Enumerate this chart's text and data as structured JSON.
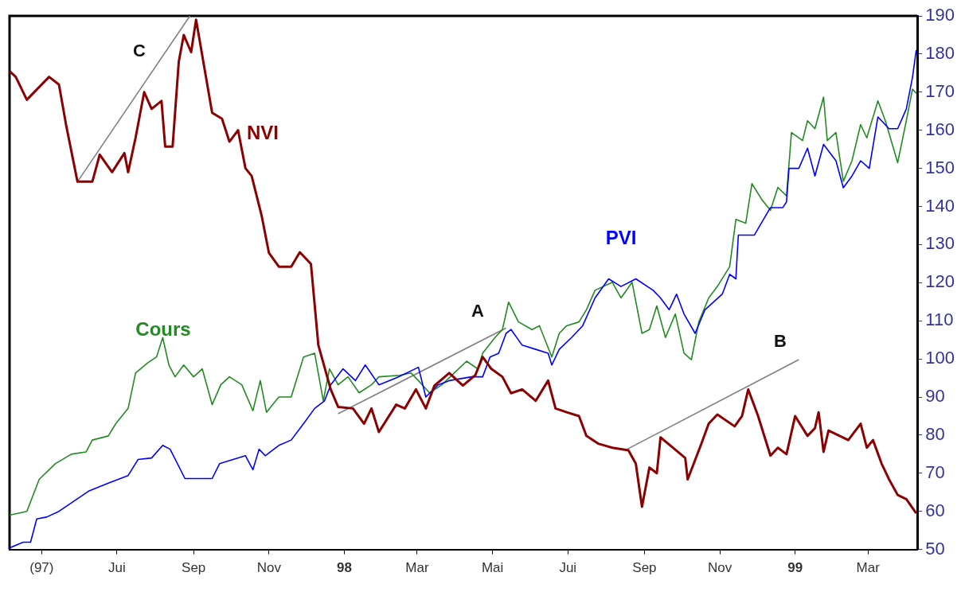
{
  "chart_data": {
    "type": "line",
    "xlim": [
      "1997-04-05",
      "1999-04-10"
    ],
    "xticks": [
      {
        "value": "1997-05-01",
        "label": "(97)"
      },
      {
        "value": "1997-07-01",
        "label": "Jui"
      },
      {
        "value": "1997-09-01",
        "label": "Sep"
      },
      {
        "value": "1997-11-01",
        "label": "Nov"
      },
      {
        "value": "1998-01-01",
        "label": "98"
      },
      {
        "value": "1998-03-01",
        "label": "Mar"
      },
      {
        "value": "1998-05-01",
        "label": "Mai"
      },
      {
        "value": "1998-07-01",
        "label": "Jui"
      },
      {
        "value": "1998-09-01",
        "label": "Sep"
      },
      {
        "value": "1998-11-01",
        "label": "Nov"
      },
      {
        "value": "1999-01-01",
        "label": "99"
      },
      {
        "value": "1999-03-01",
        "label": "Mar"
      }
    ],
    "ylim": [
      50,
      190
    ],
    "yticks": [
      50,
      60,
      70,
      80,
      90,
      100,
      110,
      120,
      130,
      140,
      150,
      160,
      170,
      180,
      190
    ],
    "grid": false,
    "legend": false,
    "marker": "none",
    "line_style": "solid",
    "annotations": [
      "A",
      "B",
      "C"
    ],
    "series": [
      {
        "name": "NVI",
        "color": "#8b0000",
        "x": [
          "1997-04-05",
          "1997-04-10",
          "1997-04-19",
          "1997-05-07",
          "1997-05-15",
          "1997-05-21",
          "1997-05-30",
          "1997-06-11",
          "1997-06-17",
          "1997-06-27",
          "1997-07-07",
          "1997-07-10",
          "1997-07-16",
          "1997-07-23",
          "1997-07-29",
          "1997-08-06",
          "1997-08-09",
          "1997-08-15",
          "1997-08-20",
          "1997-08-24",
          "1997-08-30",
          "1997-09-03",
          "1997-09-11",
          "1997-09-16",
          "1997-09-24",
          "1997-09-30",
          "1997-10-07",
          "1997-10-13",
          "1997-10-18",
          "1997-10-26",
          "1997-11-01",
          "1997-11-09",
          "1997-11-19",
          "1997-11-26",
          "1997-12-05",
          "1997-12-11",
          "1997-12-21",
          "1997-12-27",
          "1998-01-08",
          "1998-01-17",
          "1998-01-23",
          "1998-01-29",
          "1998-02-12",
          "1998-02-19",
          "1998-02-28",
          "1998-03-08",
          "1998-03-15",
          "1998-03-27",
          "1998-04-07",
          "1998-04-17",
          "1998-04-23",
          "1998-04-30",
          "1998-05-09",
          "1998-05-16",
          "1998-05-25",
          "1998-06-05",
          "1998-06-15",
          "1998-06-21",
          "1998-06-30",
          "1998-07-10",
          "1998-07-16",
          "1998-07-26",
          "1998-08-06",
          "1998-08-19",
          "1998-08-25",
          "1998-08-30",
          "1998-09-05",
          "1998-09-11",
          "1998-09-14",
          "1998-09-24",
          "1998-10-04",
          "1998-10-06",
          "1998-10-17",
          "1998-10-23",
          "1998-10-30",
          "1998-11-13",
          "1998-11-19",
          "1998-11-24",
          "1998-12-02",
          "1998-12-12",
          "1998-12-18",
          "1998-12-25",
          "1999-01-01",
          "1999-01-11",
          "1999-01-17",
          "1999-01-20",
          "1999-01-24",
          "1999-01-28",
          "1999-02-13",
          "1999-02-23",
          "1999-02-28",
          "1999-03-05",
          "1999-03-12",
          "1999-03-18",
          "1999-03-25",
          "1999-04-01",
          "1999-04-09"
        ],
        "values": [
          175.5,
          174,
          168,
          174,
          172,
          161,
          146.5,
          146.5,
          153.6,
          149,
          154,
          149,
          158,
          170,
          165.6,
          167.7,
          155.7,
          155.7,
          178,
          185,
          180.5,
          189,
          174,
          164.6,
          163,
          157,
          160,
          150,
          148,
          137.7,
          127.8,
          124.2,
          124.2,
          128,
          124.9,
          103.6,
          92,
          87.4,
          87,
          83,
          87,
          80.8,
          88,
          87,
          92,
          87,
          93,
          96.3,
          93,
          95.7,
          100.5,
          97.4,
          95.3,
          91,
          92,
          89,
          94.3,
          87,
          86,
          85,
          79.8,
          77.7,
          76.7,
          76,
          72.5,
          61.2,
          71.5,
          70,
          79.4,
          76.7,
          74,
          68.4,
          77.7,
          83,
          85.4,
          82.3,
          85,
          92,
          85,
          74.6,
          76.7,
          75,
          85,
          79.8,
          81.8,
          86,
          75.6,
          81.2,
          78.7,
          83,
          76.7,
          78.7,
          72.5,
          68.4,
          64.3,
          63.2,
          59.5
        ]
      },
      {
        "name": "PVI",
        "color": "#0000ff",
        "x": [
          "1997-04-05",
          "1997-04-16",
          "1997-04-22",
          "1997-04-27",
          "1997-05-05",
          "1997-05-15",
          "1997-05-25",
          "1997-06-08",
          "1997-06-24",
          "1997-07-10",
          "1997-07-18",
          "1997-07-29",
          "1997-08-07",
          "1997-08-13",
          "1997-08-25",
          "1997-09-16",
          "1997-09-22",
          "1997-10-03",
          "1997-10-13",
          "1997-10-19",
          "1997-10-24",
          "1997-10-29",
          "1997-11-09",
          "1997-11-19",
          "1997-11-29",
          "1997-12-08",
          "1997-12-16",
          "1997-12-21",
          "1997-12-31",
          "1998-01-10",
          "1998-01-18",
          "1998-01-29",
          "1998-02-12",
          "1998-03-02",
          "1998-03-08",
          "1998-03-18",
          "1998-03-27",
          "1998-04-14",
          "1998-04-23",
          "1998-04-29",
          "1998-05-06",
          "1998-05-12",
          "1998-05-16",
          "1998-05-25",
          "1998-06-05",
          "1998-06-15",
          "1998-06-18",
          "1998-06-24",
          "1998-07-04",
          "1998-07-13",
          "1998-07-23",
          "1998-08-03",
          "1998-08-13",
          "1998-08-25",
          "1998-09-08",
          "1998-09-14",
          "1998-09-21",
          "1998-09-27",
          "1998-10-03",
          "1998-10-12",
          "1998-10-20",
          "1998-11-03",
          "1998-11-09",
          "1998-11-14",
          "1998-11-16",
          "1998-11-29",
          "1998-12-12",
          "1998-12-22",
          "1998-12-25",
          "1998-12-27",
          "1999-01-04",
          "1999-01-11",
          "1999-01-17",
          "1999-01-24",
          "1999-02-03",
          "1999-02-09",
          "1999-02-16",
          "1999-02-23",
          "1999-03-02",
          "1999-03-09",
          "1999-03-18",
          "1999-03-25",
          "1999-04-01",
          "1999-04-06",
          "1999-04-09"
        ],
        "values": [
          50.4,
          51.9,
          51.9,
          58,
          58.5,
          60,
          62.2,
          65.3,
          67.4,
          69.4,
          73.6,
          74,
          77.3,
          76.3,
          68.6,
          68.6,
          72.5,
          73.6,
          74.6,
          70.9,
          76.3,
          74.6,
          77.3,
          78.7,
          83,
          87,
          89,
          93.2,
          97.4,
          94.3,
          98.4,
          93.2,
          95,
          97.8,
          90,
          93.2,
          94.3,
          95.3,
          95.3,
          100.5,
          101.5,
          106.7,
          107.7,
          103.6,
          102.5,
          101.5,
          98.4,
          102.5,
          105.6,
          108.7,
          116,
          121,
          119,
          121,
          118,
          116,
          112.9,
          117,
          111.8,
          106.7,
          112.9,
          117,
          122.2,
          121,
          132.5,
          132.5,
          139.7,
          139.7,
          141.2,
          150,
          150,
          155.3,
          148,
          156.3,
          152,
          144.9,
          148,
          152,
          150,
          163.5,
          160.4,
          160.4,
          165.6,
          173.9,
          181
        ]
      },
      {
        "name": "Cours",
        "color": "#228b22",
        "x": [
          "1997-04-05",
          "1997-04-19",
          "1997-04-29",
          "1997-05-12",
          "1997-05-25",
          "1997-06-06",
          "1997-06-11",
          "1997-06-24",
          "1997-06-30",
          "1997-07-10",
          "1997-07-16",
          "1997-07-26",
          "1997-08-02",
          "1997-08-07",
          "1997-08-12",
          "1997-08-17",
          "1997-08-24",
          "1997-09-01",
          "1997-09-08",
          "1997-09-16",
          "1997-09-23",
          "1997-09-30",
          "1997-10-10",
          "1997-10-19",
          "1997-10-25",
          "1997-10-30",
          "1997-11-09",
          "1997-11-19",
          "1997-11-29",
          "1997-12-08",
          "1997-12-15",
          "1997-12-20",
          "1997-12-27",
          "1998-01-04",
          "1998-01-13",
          "1998-01-23",
          "1998-01-29",
          "1998-02-15",
          "1998-02-24",
          "1998-03-02",
          "1998-03-11",
          "1998-03-21",
          "1998-03-31",
          "1998-04-10",
          "1998-04-19",
          "1998-04-23",
          "1998-05-03",
          "1998-05-09",
          "1998-05-14",
          "1998-05-22",
          "1998-06-02",
          "1998-06-08",
          "1998-06-18",
          "1998-06-24",
          "1998-06-30",
          "1998-07-10",
          "1998-07-16",
          "1998-07-23",
          "1998-08-06",
          "1998-08-13",
          "1998-08-22",
          "1998-08-30",
          "1998-09-05",
          "1998-09-11",
          "1998-09-18",
          "1998-09-26",
          "1998-10-03",
          "1998-10-09",
          "1998-10-15",
          "1998-10-23",
          "1998-10-30",
          "1998-11-09",
          "1998-11-14",
          "1998-11-22",
          "1998-11-27",
          "1998-12-05",
          "1998-12-12",
          "1998-12-18",
          "1998-12-25",
          "1998-12-29",
          "1999-01-07",
          "1999-01-11",
          "1999-01-17",
          "1999-01-24",
          "1999-01-27",
          "1999-02-03",
          "1999-02-09",
          "1999-02-16",
          "1999-02-23",
          "1999-02-28",
          "1999-03-09",
          "1999-03-15",
          "1999-03-25",
          "1999-04-01",
          "1999-04-06",
          "1999-04-09"
        ],
        "values": [
          59,
          60,
          68.4,
          72.5,
          75,
          75.6,
          78.7,
          79.8,
          83,
          87,
          96.3,
          99,
          100.5,
          105.6,
          98.4,
          95.3,
          98.4,
          95.3,
          97.4,
          88,
          93.2,
          95.3,
          93.2,
          86.4,
          94.3,
          86,
          90,
          90,
          100.5,
          101.5,
          89,
          97.4,
          93.2,
          95.3,
          91.1,
          93.2,
          95.3,
          95.7,
          96.3,
          94.3,
          91.1,
          93.2,
          96.3,
          99.4,
          97.4,
          101.5,
          105.6,
          107.7,
          114.9,
          109.7,
          107.7,
          108.7,
          100.5,
          106.7,
          108.7,
          109.7,
          112.9,
          118,
          120.1,
          116,
          120.1,
          106.7,
          107.7,
          113.9,
          105.6,
          111.8,
          101.5,
          99.8,
          109.7,
          116,
          119,
          124.2,
          136.6,
          135.6,
          146,
          141.8,
          139,
          145,
          142.8,
          159.4,
          157.3,
          162.5,
          160.4,
          168.7,
          157.3,
          159.4,
          146.6,
          152,
          161.5,
          158,
          167.7,
          162.5,
          151.5,
          162.5,
          170.8,
          169.7
        ]
      },
      {
        "color": "#808080",
        "x": [
          "1997-05-30",
          "1997-08-29"
        ],
        "values": [
          146.5,
          190
        ]
      },
      {
        "color": "#808080",
        "x": [
          "1997-12-27",
          "1998-05-12"
        ],
        "values": [
          85.6,
          108.1
        ]
      },
      {
        "color": "#808080",
        "x": [
          "1998-08-18",
          "1999-01-04"
        ],
        "values": [
          76.3,
          99.8
        ]
      }
    ]
  }
}
